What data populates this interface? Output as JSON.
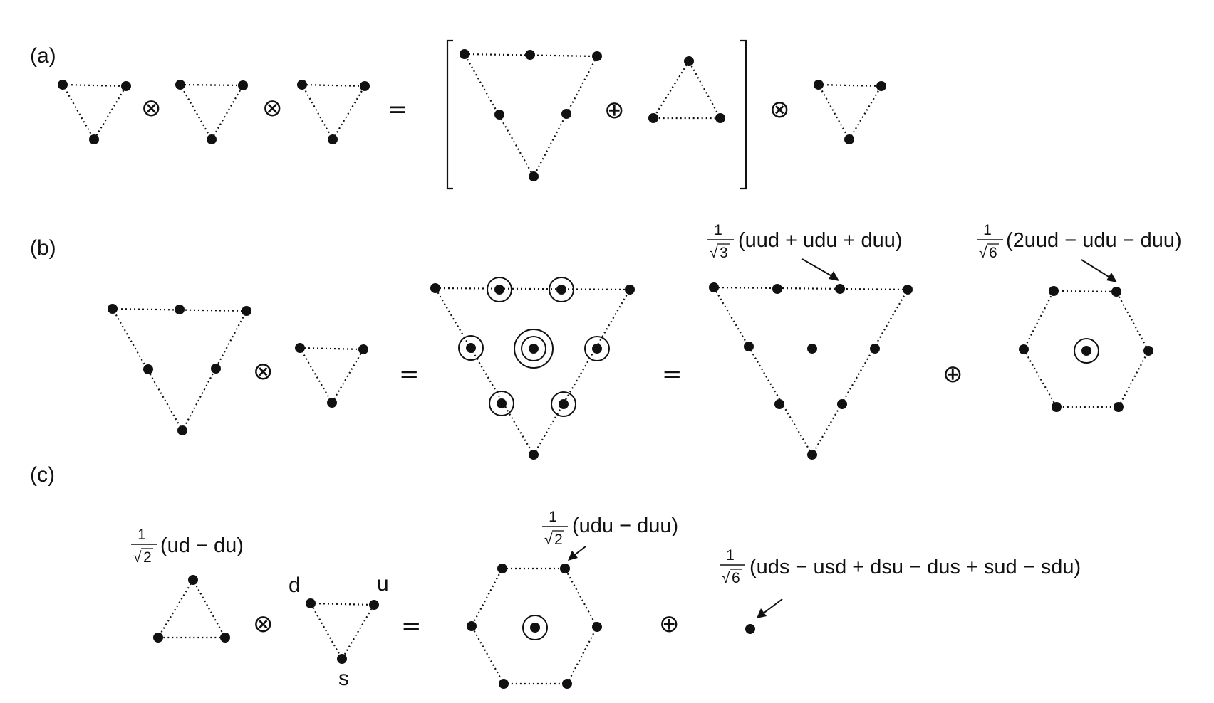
{
  "panels": {
    "a": {
      "label": "(a)",
      "ops": [
        "⊗",
        "⊗",
        "=",
        "⊕",
        "⊗"
      ]
    },
    "b": {
      "label": "(b)",
      "ops": [
        "⊗",
        "=",
        "=",
        "⊕"
      ],
      "decuplet_state": {
        "coef_num": "1",
        "coef_den": "3",
        "expr": "(uud + udu + duu)"
      },
      "octet_state": {
        "coef_num": "1",
        "coef_den": "6",
        "expr": "(2uud − udu − duu)"
      }
    },
    "c": {
      "label": "(c)",
      "ops": [
        "⊗",
        "=",
        "⊕"
      ],
      "antitriplet_state": {
        "coef_num": "1",
        "coef_den": "2",
        "expr": "(ud − du)"
      },
      "octet_state": {
        "coef_num": "1",
        "coef_den": "2",
        "expr": "(udu − duu)"
      },
      "singlet_state": {
        "coef_num": "1",
        "coef_den": "6",
        "expr": "(uds − usd + dsu − dus + sud − sdu)"
      },
      "quark_labels": {
        "d": "d",
        "u": "u",
        "s": "s"
      }
    }
  },
  "colors": {
    "ink": "#111111",
    "background": "#ffffff"
  }
}
